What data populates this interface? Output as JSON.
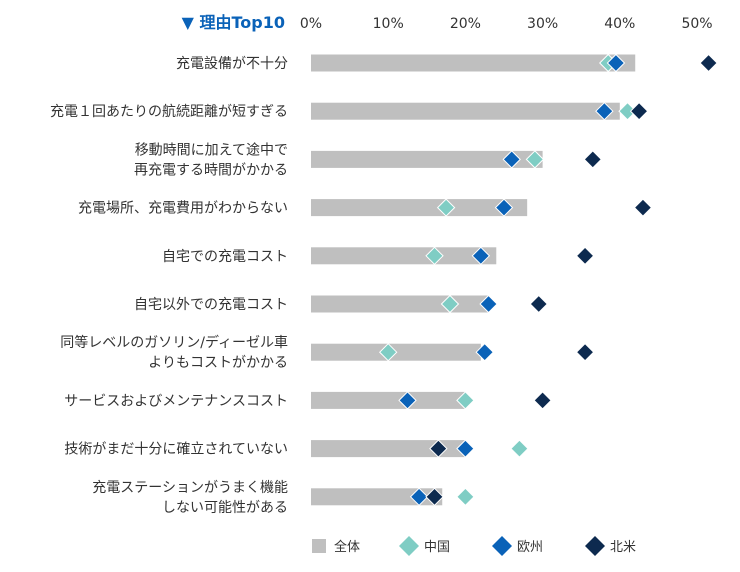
{
  "chart_data": {
    "type": "bar",
    "title": "▼ 理由Top10",
    "x_ticks": [
      "0%",
      "10%",
      "20%",
      "30%",
      "40%",
      "50%"
    ],
    "xlim": [
      0,
      50
    ],
    "categories": [
      [
        "充電設備が不十分"
      ],
      [
        "充電１回あたりの航続距離が短すぎる"
      ],
      [
        "移動時間に加えて途中で",
        "再充電する時間がかかる"
      ],
      [
        "充電場所、充電費用がわからない"
      ],
      [
        "自宅での充電コスト"
      ],
      [
        "自宅以外での充電コスト"
      ],
      [
        "同等レベルのガソリン/ディーゼル車",
        "よりもコストがかかる"
      ],
      [
        "サービスおよびメンテナンスコスト"
      ],
      [
        "技術がまだ十分に確立されていない"
      ],
      [
        "充電ステーションがうまく機能",
        "しない可能性がある"
      ]
    ],
    "series": [
      {
        "name": "全体",
        "kind": "bar",
        "color": "#bfbfbf",
        "values": [
          42,
          40,
          30,
          28,
          24,
          23,
          22,
          20,
          20,
          17
        ]
      },
      {
        "name": "中国",
        "kind": "marker",
        "color": "#7fcdc4",
        "values": [
          38.5,
          41,
          29,
          17.5,
          16,
          18,
          10,
          20,
          27,
          20
        ]
      },
      {
        "name": "欧州",
        "kind": "marker",
        "color": "#0a62b8",
        "values": [
          39.5,
          38,
          26,
          25,
          22,
          23,
          22.5,
          12.5,
          20,
          14
        ]
      },
      {
        "name": "北米",
        "kind": "marker",
        "color": "#0d2a4f",
        "values": [
          51.5,
          42.5,
          36.5,
          43,
          35.5,
          29.5,
          35.5,
          30,
          16.5,
          16
        ]
      }
    ]
  }
}
